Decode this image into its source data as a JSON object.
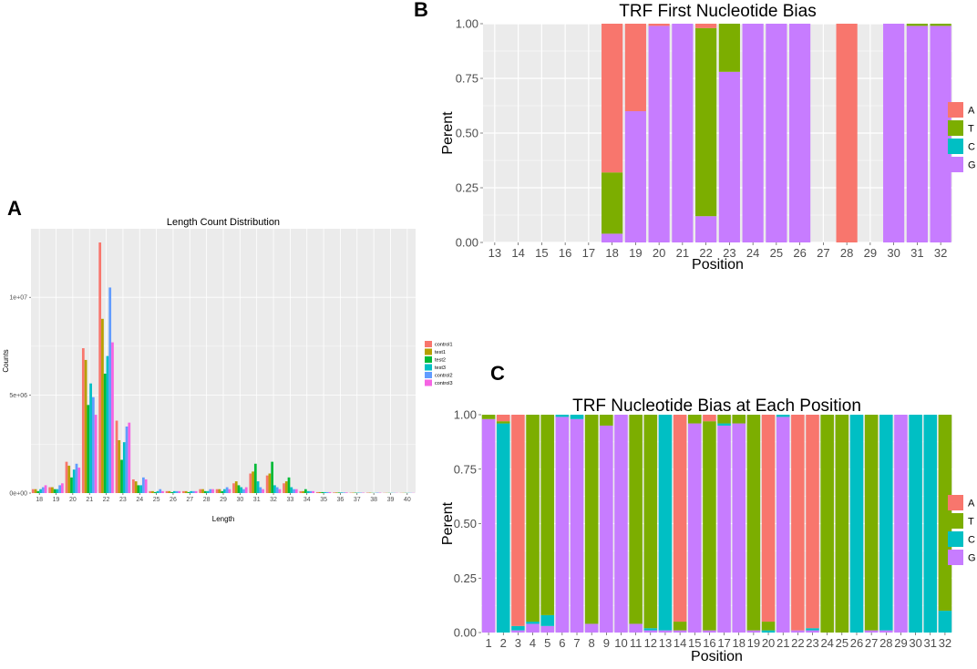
{
  "labels": {
    "a": "A",
    "b": "B",
    "c": "C"
  },
  "colors": {
    "panel_bg": "#ebebeb",
    "grid": "#ffffff",
    "control1": "#f8766d",
    "test1": "#b79f00",
    "test2": "#00ba38",
    "test3": "#00bfc4",
    "control2": "#619cff",
    "control3": "#f564e3",
    "A": "#f8766d",
    "T": "#7cae00",
    "C": "#00bfc4",
    "G": "#c77cff"
  },
  "chart_data": [
    {
      "id": "A",
      "type": "bar",
      "title": "Length Count Distribution",
      "xlabel": "Length",
      "ylabel": "Counts",
      "categories": [
        "18",
        "19",
        "20",
        "21",
        "22",
        "23",
        "24",
        "25",
        "26",
        "27",
        "28",
        "29",
        "30",
        "31",
        "32",
        "33",
        "34",
        "35",
        "36",
        "37",
        "38",
        "39",
        "40"
      ],
      "ylim": [
        0,
        13500000
      ],
      "yticks": [
        0,
        5000000,
        10000000
      ],
      "ytick_labels": [
        "0e+00",
        "5e+06",
        "1e+07"
      ],
      "series": [
        {
          "name": "control1",
          "values": [
            200000,
            300000,
            1600000,
            7400000,
            12800000,
            3700000,
            700000,
            100000,
            100000,
            100000,
            200000,
            200000,
            500000,
            1000000,
            900000,
            500000,
            100000,
            50000,
            30000,
            20000,
            20000,
            10000,
            10000
          ]
        },
        {
          "name": "test1",
          "values": [
            200000,
            300000,
            1400000,
            6800000,
            8900000,
            2700000,
            600000,
            100000,
            100000,
            100000,
            200000,
            200000,
            600000,
            1100000,
            1000000,
            600000,
            100000,
            50000,
            30000,
            20000,
            20000,
            10000,
            10000
          ]
        },
        {
          "name": "test2",
          "values": [
            100000,
            200000,
            800000,
            4500000,
            6100000,
            1700000,
            400000,
            50000,
            50000,
            50000,
            100000,
            100000,
            400000,
            1500000,
            1600000,
            800000,
            200000,
            50000,
            30000,
            20000,
            10000,
            10000,
            10000
          ]
        },
        {
          "name": "test3",
          "values": [
            200000,
            200000,
            1200000,
            5600000,
            7000000,
            2600000,
            400000,
            100000,
            100000,
            100000,
            100000,
            200000,
            300000,
            600000,
            400000,
            300000,
            100000,
            50000,
            30000,
            20000,
            10000,
            10000,
            10000
          ]
        },
        {
          "name": "control2",
          "values": [
            300000,
            400000,
            1500000,
            4900000,
            10500000,
            3400000,
            800000,
            200000,
            100000,
            100000,
            200000,
            300000,
            200000,
            300000,
            300000,
            200000,
            100000,
            50000,
            30000,
            20000,
            20000,
            10000,
            10000
          ]
        },
        {
          "name": "control3",
          "values": [
            400000,
            500000,
            1300000,
            4000000,
            7700000,
            3600000,
            700000,
            100000,
            100000,
            100000,
            200000,
            200000,
            300000,
            200000,
            200000,
            200000,
            100000,
            50000,
            30000,
            20000,
            20000,
            10000,
            10000
          ]
        }
      ]
    },
    {
      "id": "B",
      "type": "bar",
      "stacked": true,
      "title": "TRF First Nucleotide Bias",
      "xlabel": "Position",
      "ylabel": "Perent",
      "categories": [
        "13",
        "14",
        "15",
        "16",
        "17",
        "18",
        "19",
        "20",
        "21",
        "22",
        "23",
        "24",
        "25",
        "26",
        "27",
        "28",
        "29",
        "30",
        "31",
        "32"
      ],
      "ylim": [
        0,
        1
      ],
      "yticks": [
        0,
        0.25,
        0.5,
        0.75,
        1
      ],
      "ytick_labels": [
        "0.00",
        "0.25",
        "0.50",
        "0.75",
        "1.00"
      ],
      "legend": [
        "A",
        "T",
        "C",
        "G"
      ],
      "series": [
        {
          "name": "A",
          "values": [
            0,
            0,
            0,
            0,
            0,
            0.68,
            0.4,
            0.01,
            0,
            0.02,
            0,
            0,
            0,
            0,
            0,
            1.0,
            0,
            0,
            0,
            0
          ]
        },
        {
          "name": "T",
          "values": [
            0,
            0,
            0,
            0,
            0,
            0.28,
            0,
            0,
            0,
            0.86,
            0.22,
            0,
            0,
            0,
            0,
            0,
            0,
            0,
            0.01,
            0.01
          ]
        },
        {
          "name": "C",
          "values": [
            0,
            0,
            0,
            0,
            0,
            0,
            0,
            0,
            0,
            0,
            0,
            0,
            0,
            0,
            0,
            0,
            0,
            0,
            0,
            0
          ]
        },
        {
          "name": "G",
          "values": [
            0,
            0,
            0,
            0,
            0,
            0.04,
            0.6,
            0.99,
            1.0,
            0.12,
            0.78,
            1.0,
            1.0,
            1.0,
            0,
            0,
            0,
            1.0,
            0.99,
            0.99
          ]
        }
      ]
    },
    {
      "id": "C",
      "type": "bar",
      "stacked": true,
      "title": "TRF Nucleotide Bias at Each Position",
      "xlabel": "Position",
      "ylabel": "Perent",
      "categories": [
        "1",
        "2",
        "3",
        "4",
        "5",
        "6",
        "7",
        "8",
        "9",
        "10",
        "11",
        "12",
        "13",
        "14",
        "15",
        "16",
        "17",
        "18",
        "19",
        "20",
        "21",
        "22",
        "23",
        "24",
        "25",
        "26",
        "27",
        "28",
        "29",
        "30",
        "31",
        "32"
      ],
      "ylim": [
        0,
        1
      ],
      "yticks": [
        0,
        0.25,
        0.5,
        0.75,
        1
      ],
      "ytick_labels": [
        "0.00",
        "0.25",
        "0.50",
        "0.75",
        "1.00"
      ],
      "legend": [
        "A",
        "T",
        "C",
        "G"
      ],
      "series": [
        {
          "name": "A",
          "values": [
            0,
            0.03,
            0.97,
            0,
            0,
            0,
            0,
            0,
            0,
            0,
            0,
            0,
            0,
            0.95,
            0,
            0.03,
            0,
            0,
            0,
            0.95,
            0,
            0.99,
            0.98,
            0,
            0,
            0,
            0,
            0,
            0,
            0,
            0,
            0
          ]
        },
        {
          "name": "T",
          "values": [
            0.02,
            0.01,
            0,
            0.95,
            0.92,
            0,
            0,
            0.96,
            0.05,
            0,
            0.96,
            0.98,
            0,
            0.04,
            0.04,
            0.96,
            0.04,
            0.04,
            0.99,
            0.04,
            0,
            0,
            0,
            1.0,
            1.0,
            0,
            0.99,
            0,
            0,
            0,
            0,
            0.9
          ]
        },
        {
          "name": "C",
          "values": [
            0,
            0.96,
            0.02,
            0.01,
            0.05,
            0.01,
            0.02,
            0,
            0,
            0,
            0,
            0.01,
            0.99,
            0,
            0,
            0,
            0.01,
            0,
            0,
            0.01,
            0.01,
            0,
            0.01,
            0,
            0,
            1.0,
            0,
            0.99,
            0,
            1.0,
            1.0,
            0.1
          ]
        },
        {
          "name": "G",
          "values": [
            0.98,
            0,
            0.01,
            0.04,
            0.03,
            0.99,
            0.98,
            0.04,
            0.95,
            1.0,
            0.04,
            0.01,
            0.01,
            0.01,
            0.96,
            0.01,
            0.95,
            0.96,
            0.01,
            0,
            0.99,
            0.01,
            0.01,
            0,
            0,
            0,
            0.01,
            0.01,
            1.0,
            0,
            0,
            0
          ]
        }
      ]
    }
  ]
}
